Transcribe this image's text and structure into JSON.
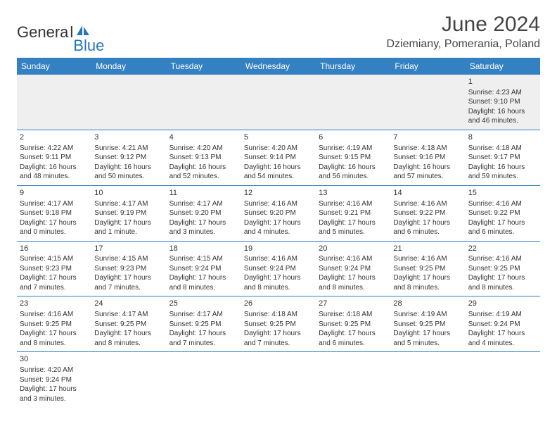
{
  "header": {
    "logo_gen": "Genera",
    "logo_l": "l",
    "logo_blue": "Blue",
    "month": "June 2024",
    "location": "Dziemiany, Pomerania, Poland"
  },
  "colors": {
    "header_bg": "#3380c2",
    "header_text": "#ffffff",
    "border": "#3380c2",
    "logo_blue": "#2775bb",
    "gray_row": "#efefef"
  },
  "days_of_week": [
    "Sunday",
    "Monday",
    "Tuesday",
    "Wednesday",
    "Thursday",
    "Friday",
    "Saturday"
  ],
  "weeks": [
    [
      null,
      null,
      null,
      null,
      null,
      null,
      {
        "n": "1",
        "sr": "Sunrise: 4:23 AM",
        "ss": "Sunset: 9:10 PM",
        "d1": "Daylight: 16 hours",
        "d2": "and 46 minutes."
      }
    ],
    [
      {
        "n": "2",
        "sr": "Sunrise: 4:22 AM",
        "ss": "Sunset: 9:11 PM",
        "d1": "Daylight: 16 hours",
        "d2": "and 48 minutes."
      },
      {
        "n": "3",
        "sr": "Sunrise: 4:21 AM",
        "ss": "Sunset: 9:12 PM",
        "d1": "Daylight: 16 hours",
        "d2": "and 50 minutes."
      },
      {
        "n": "4",
        "sr": "Sunrise: 4:20 AM",
        "ss": "Sunset: 9:13 PM",
        "d1": "Daylight: 16 hours",
        "d2": "and 52 minutes."
      },
      {
        "n": "5",
        "sr": "Sunrise: 4:20 AM",
        "ss": "Sunset: 9:14 PM",
        "d1": "Daylight: 16 hours",
        "d2": "and 54 minutes."
      },
      {
        "n": "6",
        "sr": "Sunrise: 4:19 AM",
        "ss": "Sunset: 9:15 PM",
        "d1": "Daylight: 16 hours",
        "d2": "and 56 minutes."
      },
      {
        "n": "7",
        "sr": "Sunrise: 4:18 AM",
        "ss": "Sunset: 9:16 PM",
        "d1": "Daylight: 16 hours",
        "d2": "and 57 minutes."
      },
      {
        "n": "8",
        "sr": "Sunrise: 4:18 AM",
        "ss": "Sunset: 9:17 PM",
        "d1": "Daylight: 16 hours",
        "d2": "and 59 minutes."
      }
    ],
    [
      {
        "n": "9",
        "sr": "Sunrise: 4:17 AM",
        "ss": "Sunset: 9:18 PM",
        "d1": "Daylight: 17 hours",
        "d2": "and 0 minutes."
      },
      {
        "n": "10",
        "sr": "Sunrise: 4:17 AM",
        "ss": "Sunset: 9:19 PM",
        "d1": "Daylight: 17 hours",
        "d2": "and 1 minute."
      },
      {
        "n": "11",
        "sr": "Sunrise: 4:17 AM",
        "ss": "Sunset: 9:20 PM",
        "d1": "Daylight: 17 hours",
        "d2": "and 3 minutes."
      },
      {
        "n": "12",
        "sr": "Sunrise: 4:16 AM",
        "ss": "Sunset: 9:20 PM",
        "d1": "Daylight: 17 hours",
        "d2": "and 4 minutes."
      },
      {
        "n": "13",
        "sr": "Sunrise: 4:16 AM",
        "ss": "Sunset: 9:21 PM",
        "d1": "Daylight: 17 hours",
        "d2": "and 5 minutes."
      },
      {
        "n": "14",
        "sr": "Sunrise: 4:16 AM",
        "ss": "Sunset: 9:22 PM",
        "d1": "Daylight: 17 hours",
        "d2": "and 6 minutes."
      },
      {
        "n": "15",
        "sr": "Sunrise: 4:16 AM",
        "ss": "Sunset: 9:22 PM",
        "d1": "Daylight: 17 hours",
        "d2": "and 6 minutes."
      }
    ],
    [
      {
        "n": "16",
        "sr": "Sunrise: 4:15 AM",
        "ss": "Sunset: 9:23 PM",
        "d1": "Daylight: 17 hours",
        "d2": "and 7 minutes."
      },
      {
        "n": "17",
        "sr": "Sunrise: 4:15 AM",
        "ss": "Sunset: 9:23 PM",
        "d1": "Daylight: 17 hours",
        "d2": "and 7 minutes."
      },
      {
        "n": "18",
        "sr": "Sunrise: 4:15 AM",
        "ss": "Sunset: 9:24 PM",
        "d1": "Daylight: 17 hours",
        "d2": "and 8 minutes."
      },
      {
        "n": "19",
        "sr": "Sunrise: 4:16 AM",
        "ss": "Sunset: 9:24 PM",
        "d1": "Daylight: 17 hours",
        "d2": "and 8 minutes."
      },
      {
        "n": "20",
        "sr": "Sunrise: 4:16 AM",
        "ss": "Sunset: 9:24 PM",
        "d1": "Daylight: 17 hours",
        "d2": "and 8 minutes."
      },
      {
        "n": "21",
        "sr": "Sunrise: 4:16 AM",
        "ss": "Sunset: 9:25 PM",
        "d1": "Daylight: 17 hours",
        "d2": "and 8 minutes."
      },
      {
        "n": "22",
        "sr": "Sunrise: 4:16 AM",
        "ss": "Sunset: 9:25 PM",
        "d1": "Daylight: 17 hours",
        "d2": "and 8 minutes."
      }
    ],
    [
      {
        "n": "23",
        "sr": "Sunrise: 4:16 AM",
        "ss": "Sunset: 9:25 PM",
        "d1": "Daylight: 17 hours",
        "d2": "and 8 minutes."
      },
      {
        "n": "24",
        "sr": "Sunrise: 4:17 AM",
        "ss": "Sunset: 9:25 PM",
        "d1": "Daylight: 17 hours",
        "d2": "and 8 minutes."
      },
      {
        "n": "25",
        "sr": "Sunrise: 4:17 AM",
        "ss": "Sunset: 9:25 PM",
        "d1": "Daylight: 17 hours",
        "d2": "and 7 minutes."
      },
      {
        "n": "26",
        "sr": "Sunrise: 4:18 AM",
        "ss": "Sunset: 9:25 PM",
        "d1": "Daylight: 17 hours",
        "d2": "and 7 minutes."
      },
      {
        "n": "27",
        "sr": "Sunrise: 4:18 AM",
        "ss": "Sunset: 9:25 PM",
        "d1": "Daylight: 17 hours",
        "d2": "and 6 minutes."
      },
      {
        "n": "28",
        "sr": "Sunrise: 4:19 AM",
        "ss": "Sunset: 9:25 PM",
        "d1": "Daylight: 17 hours",
        "d2": "and 5 minutes."
      },
      {
        "n": "29",
        "sr": "Sunrise: 4:19 AM",
        "ss": "Sunset: 9:24 PM",
        "d1": "Daylight: 17 hours",
        "d2": "and 4 minutes."
      }
    ],
    [
      {
        "n": "30",
        "sr": "Sunrise: 4:20 AM",
        "ss": "Sunset: 9:24 PM",
        "d1": "Daylight: 17 hours",
        "d2": "and 3 minutes."
      },
      null,
      null,
      null,
      null,
      null,
      null
    ]
  ]
}
